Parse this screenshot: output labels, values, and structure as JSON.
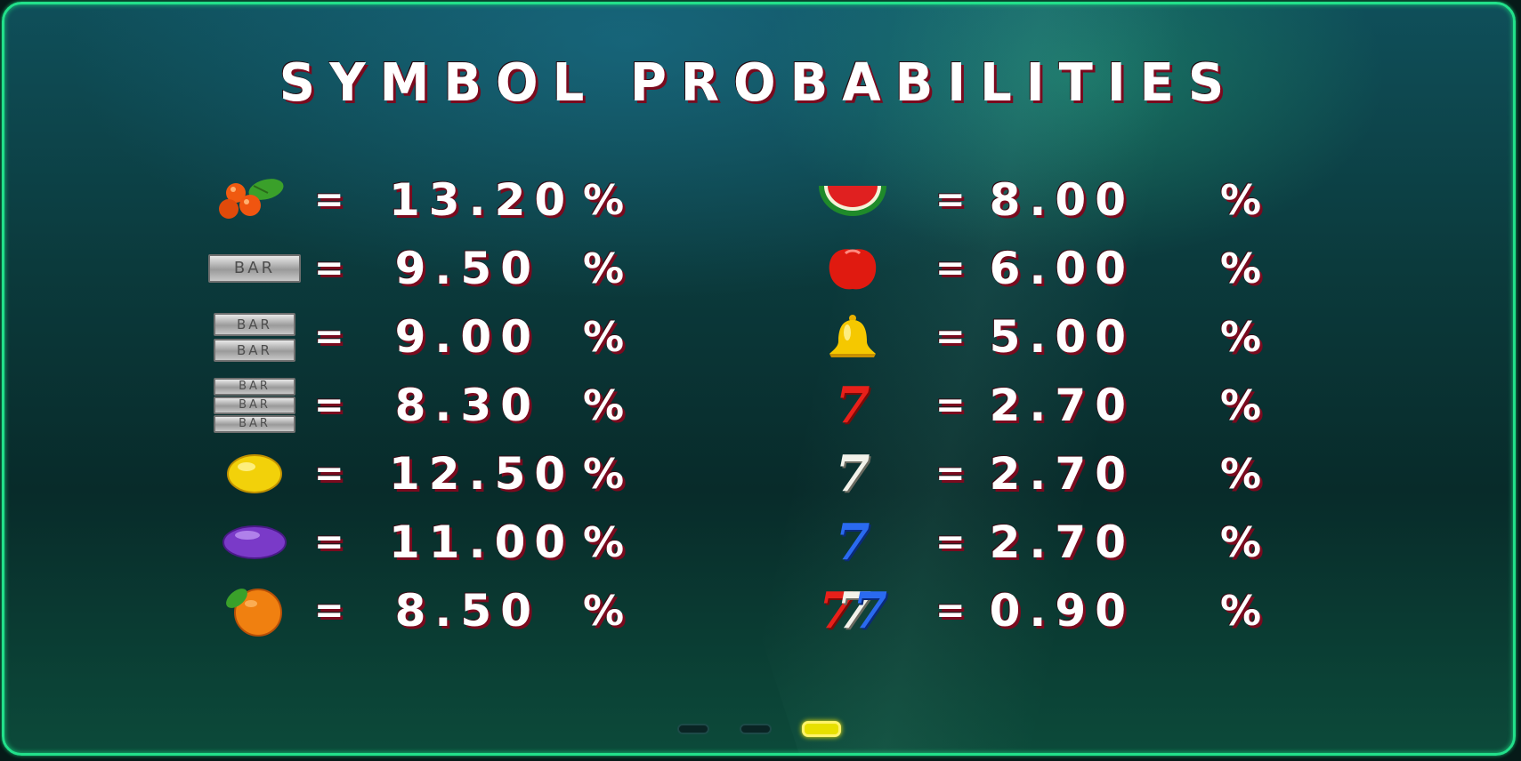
{
  "title": "SYMBOL PROBABILITIES",
  "equals": "=",
  "percent": "%",
  "left_column": [
    {
      "icon": "cherries-icon",
      "value": "13.20"
    },
    {
      "icon": "single-bar-icon",
      "value": "9.50"
    },
    {
      "icon": "double-bar-icon",
      "value": "9.00"
    },
    {
      "icon": "triple-bar-icon",
      "value": "8.30"
    },
    {
      "icon": "lemon-icon",
      "value": "12.50"
    },
    {
      "icon": "plum-icon",
      "value": "11.00"
    },
    {
      "icon": "orange-icon",
      "value": "8.50"
    }
  ],
  "right_column": [
    {
      "icon": "watermelon-icon",
      "value": "8.00"
    },
    {
      "icon": "tomato-icon",
      "value": "6.00"
    },
    {
      "icon": "bell-icon",
      "value": "5.00"
    },
    {
      "icon": "red-seven-icon",
      "value": "2.70"
    },
    {
      "icon": "white-seven-icon",
      "value": "2.70"
    },
    {
      "icon": "blue-seven-icon",
      "value": "2.70"
    },
    {
      "icon": "triple-seven-icon",
      "value": "0.90"
    }
  ],
  "bar_label": "BAR",
  "seven_glyph": "7",
  "pagination": {
    "pages": 3,
    "active_page": 3
  },
  "colors": {
    "frame": "#22e08a",
    "text": "#ffffff",
    "text_shadow": "#7a0a1e",
    "active_dot": "#e8e000"
  }
}
